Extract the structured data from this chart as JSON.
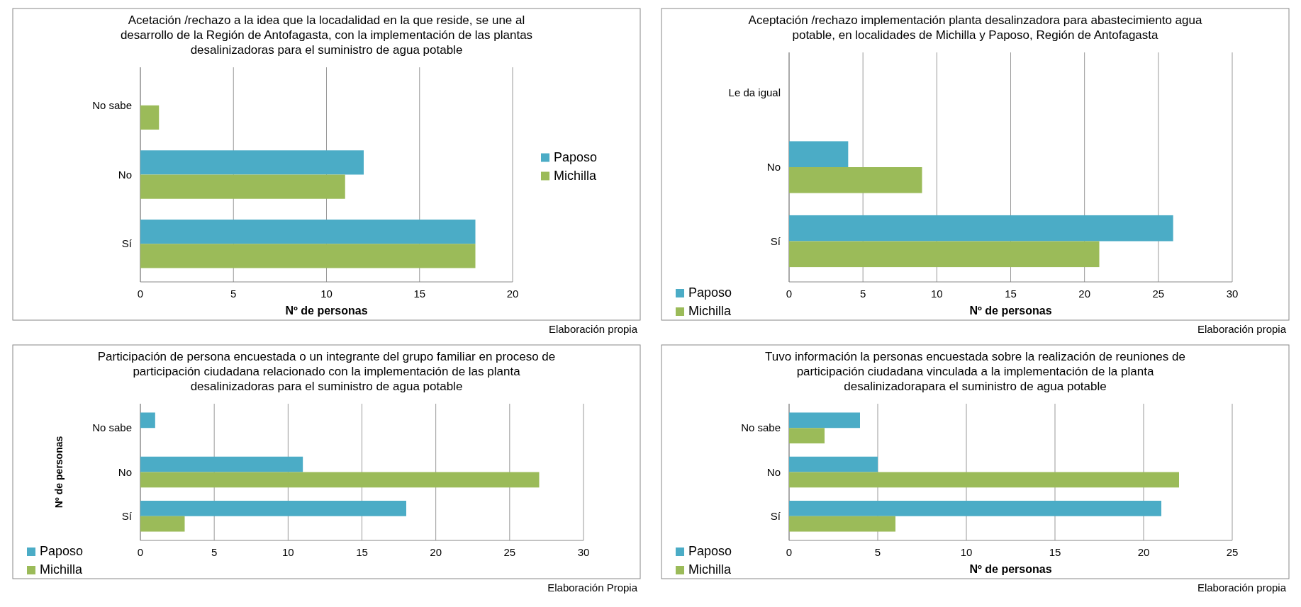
{
  "chart_data": [
    {
      "type": "bar",
      "orientation": "horizontal",
      "title": "Acetación /rechazo a la idea que la locadalidad en la que reside, se une al desarrollo de la Región de Antofagasta, con la implementación de las plantas desalinizadoras para el suministro de agua potable",
      "categories": [
        "No sabe",
        "No",
        "Sí"
      ],
      "series": [
        {
          "name": "Paposo",
          "color": "#4bacc6",
          "values": [
            0,
            12,
            18
          ]
        },
        {
          "name": "Michilla",
          "color": "#9bbb59",
          "values": [
            1,
            11,
            18
          ]
        }
      ],
      "xlim": [
        0,
        20
      ],
      "xticks": [
        0,
        5,
        10,
        15,
        20
      ],
      "xlabel": "Nº de personas",
      "grid": "x",
      "legend": "right",
      "annotations": [
        "Elaboración propia"
      ]
    },
    {
      "type": "bar",
      "orientation": "horizontal",
      "title": "Aceptación /rechazo implementación planta desalinzadora para abastecimiento agua potable, en localidades de Michilla y Paposo, Región de Antofagasta",
      "categories": [
        "Le da igual",
        "No",
        "Sí"
      ],
      "series": [
        {
          "name": "Paposo",
          "color": "#4bacc6",
          "values": [
            0,
            4,
            26
          ]
        },
        {
          "name": "Michilla",
          "color": "#9bbb59",
          "values": [
            0,
            9,
            21
          ]
        }
      ],
      "xlim": [
        0,
        30
      ],
      "xticks": [
        0,
        5,
        10,
        15,
        20,
        25,
        30
      ],
      "xlabel": "Nº de personas",
      "grid": "x",
      "legend": "bottom left",
      "annotations": [
        "Elaboración propia"
      ]
    },
    {
      "type": "bar",
      "orientation": "horizontal",
      "title": "Participación de persona encuestada o un integrante del grupo familiar en proceso de participación ciudadana relacionado con la implementación de las planta desalinizadoras para el suministro de agua potable",
      "categories": [
        "No sabe",
        "No",
        "Sí"
      ],
      "series": [
        {
          "name": "Paposo",
          "color": "#4bacc6",
          "values": [
            1,
            11,
            18
          ]
        },
        {
          "name": "Michilla",
          "color": "#9bbb59",
          "values": [
            0,
            27,
            3
          ]
        }
      ],
      "xlim": [
        0,
        30
      ],
      "xticks": [
        0,
        5,
        10,
        15,
        20,
        25,
        30
      ],
      "ylabel": "Nº de personas",
      "grid": "x",
      "legend": "bottom left",
      "annotations": [
        "Elaboración Propia"
      ]
    },
    {
      "type": "bar",
      "orientation": "horizontal",
      "title": "Tuvo información la personas encuestada sobre la realización de reuniones de participación ciudadana vinculada a la implementación de la planta desalinizadorapara el suministro de agua potable",
      "categories": [
        "No sabe",
        "No",
        "Sí"
      ],
      "series": [
        {
          "name": "Paposo",
          "color": "#4bacc6",
          "values": [
            4,
            5,
            21
          ]
        },
        {
          "name": "Michilla",
          "color": "#9bbb59",
          "values": [
            2,
            22,
            6
          ]
        }
      ],
      "xlim": [
        0,
        25
      ],
      "xticks": [
        0,
        5,
        10,
        15,
        20,
        25
      ],
      "xlabel": "Nº de personas",
      "grid": "x",
      "legend": "bottom left",
      "annotations": [
        "Elaboración propia"
      ]
    }
  ]
}
